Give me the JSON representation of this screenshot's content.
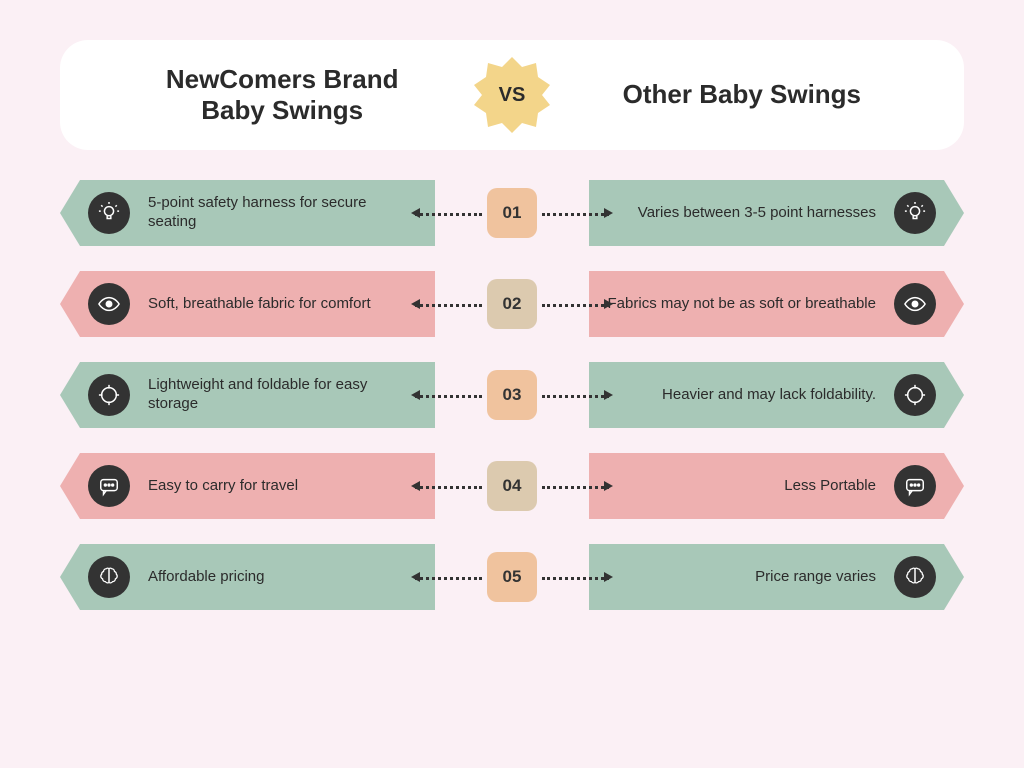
{
  "header": {
    "left_title": "NewComers Brand\nBaby Swings",
    "right_title": "Other Baby Swings",
    "vs_label": "VS",
    "vs_badge_color": "#f3d58a"
  },
  "colors": {
    "green": "#a8c8b8",
    "pink": "#eeb0b0",
    "badge_peach": "#f0c39e",
    "badge_tan": "#dccaaf",
    "icon_bg": "#333333",
    "page_bg": "#fbf0f5",
    "header_bg": "#ffffff"
  },
  "rows": [
    {
      "num": "01",
      "left_text": "5-point safety harness for secure seating",
      "right_text": "Varies between 3-5 point harnesses",
      "bar_color": "green",
      "badge_color": "#f0c39e",
      "icon": "bulb"
    },
    {
      "num": "02",
      "left_text": "Soft, breathable fabric for comfort",
      "right_text": "Fabrics may not be as soft or breathable",
      "bar_color": "pink",
      "badge_color": "#dccaaf",
      "icon": "eye"
    },
    {
      "num": "03",
      "left_text": "Lightweight and foldable for easy storage",
      "right_text": "Heavier and may lack foldability.",
      "bar_color": "green",
      "badge_color": "#f0c39e",
      "icon": "target"
    },
    {
      "num": "04",
      "left_text": "Easy to carry for travel",
      "right_text": "Less Portable",
      "bar_color": "pink",
      "badge_color": "#dccaaf",
      "icon": "chat"
    },
    {
      "num": "05",
      "left_text": "Affordable pricing",
      "right_text": "Price range varies",
      "bar_color": "green",
      "badge_color": "#f0c39e",
      "icon": "brain"
    }
  ]
}
